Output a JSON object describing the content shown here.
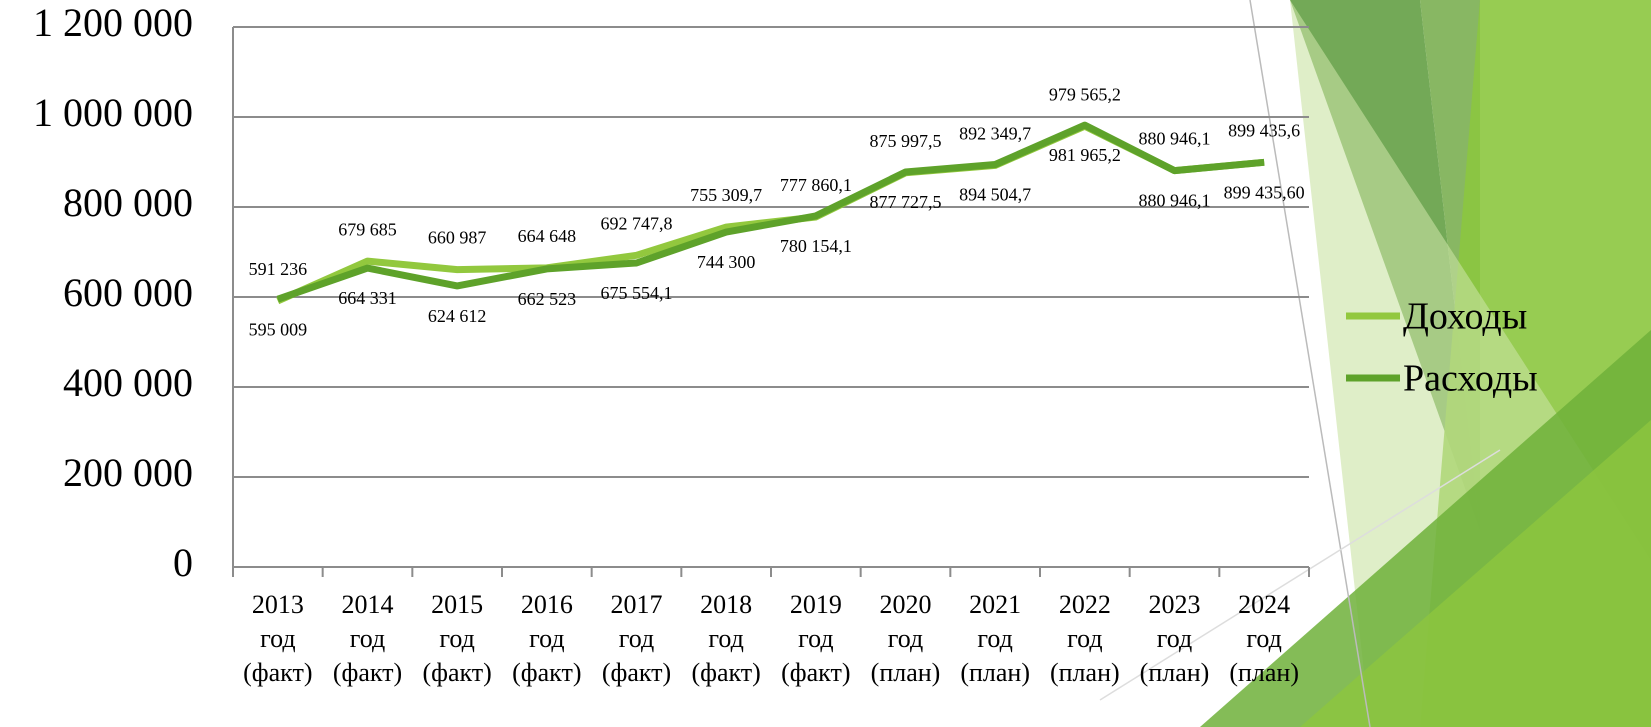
{
  "chart_data": {
    "type": "line",
    "categories": [
      "2013 год (факт)",
      "2014 год (факт)",
      "2015 год (факт)",
      "2016 год (факт)",
      "2017 год (факт)",
      "2018 год (факт)",
      "2019 год (факт)",
      "2020 год (план)",
      "2021 год (план)",
      "2022 год (план)",
      "2023 год (план)",
      "2024 год (план)"
    ],
    "series": [
      {
        "name": "Доходы",
        "color": "#92c83e",
        "values": [
          591236,
          679685,
          660987,
          664648,
          692747.8,
          755309.7,
          777860.1,
          875997.5,
          892349.7,
          979565.2,
          880946.1,
          899435.6
        ],
        "value_labels": [
          "591 236",
          "679 685",
          "660 987",
          "664 648",
          "692 747,8",
          "755 309,7",
          "777 860,1",
          "875 997,5",
          "892 349,7",
          "979 565,2",
          "880 946,1",
          "899 435,6"
        ]
      },
      {
        "name": "Расходы",
        "color": "#5ea22a",
        "values": [
          595009,
          664331,
          624612,
          662523,
          675554.1,
          744300,
          780154.1,
          877727.5,
          894504.7,
          981965.2,
          880946.1,
          899435.6
        ],
        "value_labels": [
          "595 009",
          "664 331",
          "624 612",
          "662 523",
          "675 554,1",
          "744 300",
          "780 154,1",
          "877 727,5",
          "894 504,7",
          "981 965,2",
          "880 946,1",
          "899 435,60"
        ]
      }
    ],
    "ylim": [
      0,
      1200000
    ],
    "yticks": [
      0,
      {
        "value": 200000,
        "label": "200 000"
      },
      {
        "value": 400000,
        "label": "400 000"
      },
      {
        "value": 600000,
        "label": "600 000"
      },
      {
        "value": 800000,
        "label": "800 000"
      },
      {
        "value": 1000000,
        "label": "1 000 000"
      },
      {
        "value": 1200000,
        "label": "1 200 000"
      }
    ],
    "grid": true,
    "legend": "right"
  }
}
